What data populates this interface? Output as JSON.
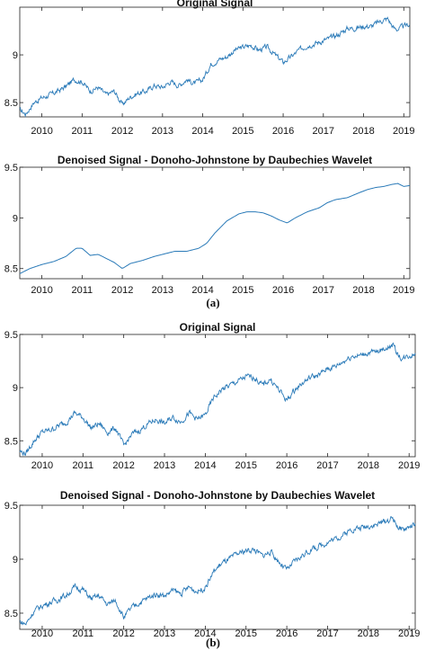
{
  "panels": {
    "a": {
      "caption": "(a)",
      "top": {
        "title": "Original Signal",
        "x_ticks": [
          "2010",
          "2011",
          "2012",
          "2013",
          "2014",
          "2015",
          "2016",
          "2017",
          "2018",
          "2019"
        ],
        "y_ticks": [
          "8.5",
          "9"
        ]
      },
      "bottom": {
        "title": "Denoised Signal - Donoho-Johnstone by Daubechies Wavelet",
        "x_ticks": [
          "2010",
          "2011",
          "2012",
          "2013",
          "2014",
          "2015",
          "2016",
          "2017",
          "2018",
          "2019"
        ],
        "y_ticks": [
          "8.5",
          "9",
          "9.5"
        ]
      }
    },
    "b": {
      "caption": "(b)",
      "top": {
        "title": "Original Signal",
        "x_ticks": [
          "2010",
          "2011",
          "2012",
          "2013",
          "2014",
          "2015",
          "2016",
          "2017",
          "2018",
          "2019"
        ],
        "y_ticks": [
          "8.5",
          "9",
          "9.5"
        ]
      },
      "bottom": {
        "title": "Denoised Signal - Donoho-Johnstone by Daubechies Wavelet",
        "x_ticks": [
          "2010",
          "2011",
          "2012",
          "2013",
          "2014",
          "2015",
          "2016",
          "2017",
          "2018",
          "2019"
        ],
        "y_ticks": [
          "8.5",
          "9",
          "9.5"
        ]
      }
    }
  },
  "chart_data": [
    {
      "type": "line",
      "title": "Original Signal",
      "xlabel": "",
      "ylabel": "",
      "xlim": [
        2009.45,
        2019.15
      ],
      "ylim": [
        8.35,
        9.5
      ],
      "grid": false,
      "noisy": true,
      "color": "#2a7ab8",
      "series": [
        {
          "x": [
            2009.45,
            2009.6,
            2009.8,
            2010.0,
            2010.2,
            2010.4,
            2010.6,
            2010.8,
            2011.0,
            2011.2,
            2011.4,
            2011.6,
            2011.8,
            2012.0,
            2012.2,
            2012.4,
            2012.6,
            2012.8,
            2013.0,
            2013.2,
            2013.4,
            2013.6,
            2013.8,
            2014.0,
            2014.2,
            2014.4,
            2014.6,
            2014.8,
            2015.0,
            2015.2,
            2015.4,
            2015.6,
            2015.8,
            2016.0,
            2016.2,
            2016.4,
            2016.6,
            2016.8,
            2017.0,
            2017.2,
            2017.4,
            2017.6,
            2017.8,
            2018.0,
            2018.2,
            2018.4,
            2018.6,
            2018.75,
            2018.85,
            2019.0,
            2019.15
          ],
          "y": [
            8.42,
            8.38,
            8.5,
            8.55,
            8.58,
            8.62,
            8.67,
            8.74,
            8.72,
            8.62,
            8.66,
            8.58,
            8.62,
            8.48,
            8.56,
            8.6,
            8.62,
            8.68,
            8.66,
            8.72,
            8.68,
            8.74,
            8.7,
            8.74,
            8.9,
            8.95,
            8.98,
            9.05,
            9.08,
            9.1,
            9.05,
            9.08,
            9.0,
            8.92,
            8.98,
            9.05,
            9.1,
            9.12,
            9.15,
            9.18,
            9.22,
            9.28,
            9.28,
            9.3,
            9.3,
            9.35,
            9.38,
            9.28,
            9.27,
            9.3,
            9.32
          ]
        }
      ]
    },
    {
      "type": "line",
      "title": "Denoised Signal - Donoho-Johnstone by Daubechies Wavelet",
      "xlabel": "",
      "ylabel": "",
      "xlim": [
        2009.45,
        2019.15
      ],
      "ylim": [
        8.4,
        9.5
      ],
      "grid": false,
      "noisy": false,
      "color": "#2a7ab8",
      "series": [
        {
          "x": [
            2009.45,
            2009.7,
            2010.0,
            2010.3,
            2010.6,
            2010.85,
            2011.0,
            2011.2,
            2011.4,
            2011.6,
            2011.8,
            2012.0,
            2012.2,
            2012.5,
            2012.8,
            2013.0,
            2013.3,
            2013.6,
            2013.9,
            2014.1,
            2014.3,
            2014.6,
            2014.9,
            2015.1,
            2015.3,
            2015.5,
            2015.7,
            2015.9,
            2016.1,
            2016.3,
            2016.6,
            2016.9,
            2017.1,
            2017.3,
            2017.6,
            2017.9,
            2018.1,
            2018.3,
            2018.5,
            2018.7,
            2018.85,
            2019.0,
            2019.15
          ],
          "y": [
            8.45,
            8.5,
            8.54,
            8.57,
            8.62,
            8.7,
            8.7,
            8.63,
            8.64,
            8.6,
            8.56,
            8.5,
            8.55,
            8.58,
            8.62,
            8.64,
            8.67,
            8.67,
            8.7,
            8.75,
            8.85,
            8.97,
            9.04,
            9.06,
            9.06,
            9.05,
            9.02,
            8.98,
            8.95,
            9.0,
            9.06,
            9.1,
            9.15,
            9.18,
            9.2,
            9.25,
            9.28,
            9.3,
            9.31,
            9.33,
            9.34,
            9.31,
            9.32
          ]
        }
      ]
    },
    {
      "type": "line",
      "title": "Original Signal",
      "xlabel": "",
      "ylabel": "",
      "xlim": [
        2009.45,
        2019.15
      ],
      "ylim": [
        8.35,
        9.5
      ],
      "grid": false,
      "noisy": true,
      "color": "#2a7ab8",
      "series": [
        {
          "x": [
            2009.45,
            2009.6,
            2009.8,
            2010.0,
            2010.2,
            2010.4,
            2010.6,
            2010.8,
            2011.0,
            2011.2,
            2011.4,
            2011.6,
            2011.8,
            2012.0,
            2012.2,
            2012.4,
            2012.6,
            2012.8,
            2013.0,
            2013.2,
            2013.4,
            2013.6,
            2013.8,
            2014.0,
            2014.2,
            2014.4,
            2014.6,
            2014.8,
            2015.0,
            2015.2,
            2015.4,
            2015.6,
            2015.8,
            2016.0,
            2016.2,
            2016.4,
            2016.6,
            2016.8,
            2017.0,
            2017.2,
            2017.4,
            2017.6,
            2017.8,
            2018.0,
            2018.2,
            2018.4,
            2018.6,
            2018.75,
            2018.85,
            2019.0,
            2019.15
          ],
          "y": [
            8.4,
            8.38,
            8.5,
            8.58,
            8.6,
            8.64,
            8.68,
            8.76,
            8.72,
            8.62,
            8.66,
            8.58,
            8.62,
            8.45,
            8.56,
            8.6,
            8.66,
            8.7,
            8.66,
            8.72,
            8.68,
            8.76,
            8.7,
            8.74,
            8.9,
            8.98,
            9.02,
            9.06,
            9.1,
            9.1,
            9.02,
            9.08,
            8.98,
            8.88,
            8.98,
            9.05,
            9.1,
            9.12,
            9.18,
            9.2,
            9.25,
            9.3,
            9.3,
            9.33,
            9.33,
            9.37,
            9.4,
            9.3,
            9.27,
            9.3,
            9.32
          ]
        }
      ]
    },
    {
      "type": "line",
      "title": "Denoised Signal - Donoho-Johnstone by Daubechies Wavelet",
      "xlabel": "",
      "ylabel": "",
      "xlim": [
        2009.45,
        2019.15
      ],
      "ylim": [
        8.35,
        9.5
      ],
      "grid": false,
      "noisy": true,
      "color": "#2a7ab8",
      "series": [
        {
          "x": [
            2009.45,
            2009.6,
            2009.8,
            2010.0,
            2010.2,
            2010.4,
            2010.6,
            2010.8,
            2011.0,
            2011.2,
            2011.4,
            2011.6,
            2011.8,
            2012.0,
            2012.2,
            2012.4,
            2012.6,
            2012.8,
            2013.0,
            2013.2,
            2013.4,
            2013.6,
            2013.8,
            2014.0,
            2014.2,
            2014.4,
            2014.6,
            2014.8,
            2015.0,
            2015.2,
            2015.4,
            2015.6,
            2015.8,
            2016.0,
            2016.2,
            2016.4,
            2016.6,
            2016.8,
            2017.0,
            2017.2,
            2017.4,
            2017.6,
            2017.8,
            2018.0,
            2018.2,
            2018.4,
            2018.6,
            2018.75,
            2018.85,
            2019.0,
            2019.15
          ],
          "y": [
            8.42,
            8.4,
            8.52,
            8.57,
            8.6,
            8.63,
            8.67,
            8.74,
            8.72,
            8.63,
            8.66,
            8.58,
            8.62,
            8.46,
            8.55,
            8.6,
            8.64,
            8.68,
            8.66,
            8.71,
            8.68,
            8.74,
            8.7,
            8.74,
            8.88,
            8.96,
            9.0,
            9.05,
            9.08,
            9.09,
            9.03,
            9.07,
            8.98,
            8.9,
            8.98,
            9.04,
            9.09,
            9.12,
            9.16,
            9.19,
            9.23,
            9.28,
            9.29,
            9.31,
            9.32,
            9.35,
            9.38,
            9.29,
            9.27,
            9.3,
            9.32
          ]
        }
      ]
    }
  ]
}
